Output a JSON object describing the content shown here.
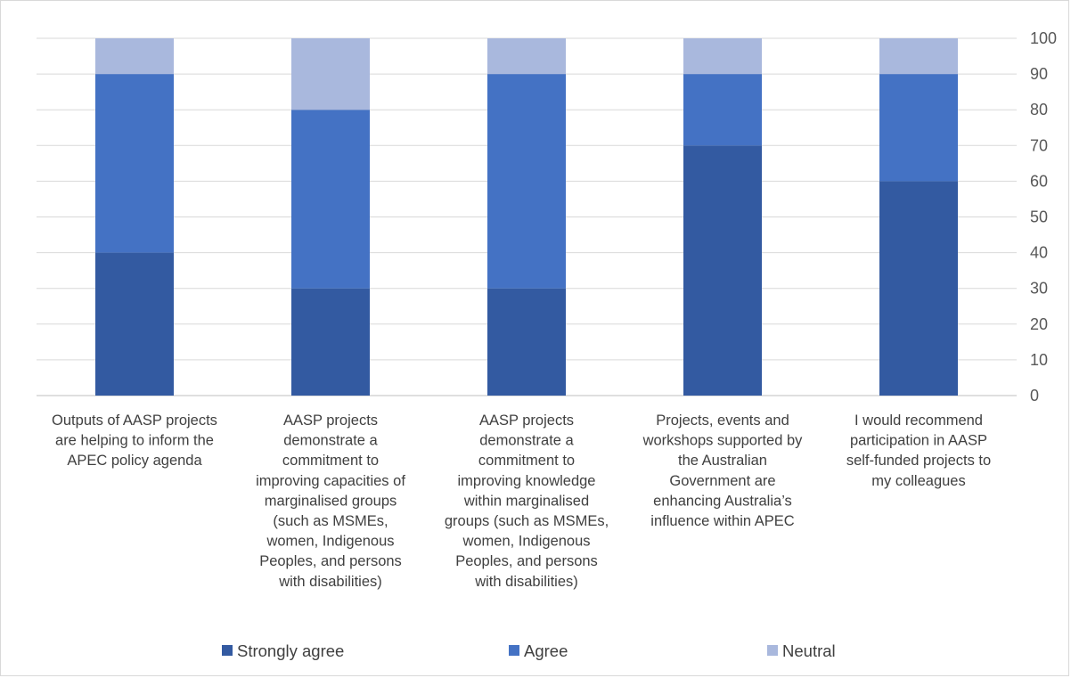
{
  "chart_data": {
    "type": "bar",
    "stacked": true,
    "categories": [
      [
        "Outputs of AASP projects",
        "are helping to inform the",
        "APEC policy agenda"
      ],
      [
        "AASP projects",
        "demonstrate a",
        "commitment to",
        "improving capacities of",
        "marginalised groups",
        "(such as MSMEs,",
        "women, Indigenous",
        "Peoples, and persons",
        "with disabilities)"
      ],
      [
        "AASP projects",
        "demonstrate a",
        "commitment to",
        "improving knowledge",
        "within marginalised",
        "groups (such as MSMEs,",
        "women, Indigenous",
        "Peoples, and persons",
        "with disabilities)"
      ],
      [
        "Projects, events and",
        "workshops supported by",
        "the Australian",
        "Government are",
        "enhancing Australia’s",
        "influence within APEC"
      ],
      [
        "I would recommend",
        "participation in AASP",
        "self-funded projects to",
        "my colleagues"
      ]
    ],
    "series": [
      {
        "name": "Strongly agree",
        "color": "#335aa1",
        "values": [
          40,
          30,
          30,
          70,
          60
        ]
      },
      {
        "name": "Agree",
        "color": "#4472c4",
        "values": [
          50,
          50,
          60,
          20,
          30
        ]
      },
      {
        "name": "Neutral",
        "color": "#a9b8dd",
        "values": [
          10,
          20,
          10,
          10,
          10
        ]
      }
    ],
    "y_axis": {
      "position": "right",
      "ylim": [
        0,
        100
      ],
      "ticks": [
        "0",
        "10",
        "20",
        "30",
        "40",
        "50",
        "60",
        "70",
        "80",
        "90",
        "100"
      ]
    },
    "grid": true,
    "legend_position": "bottom"
  }
}
